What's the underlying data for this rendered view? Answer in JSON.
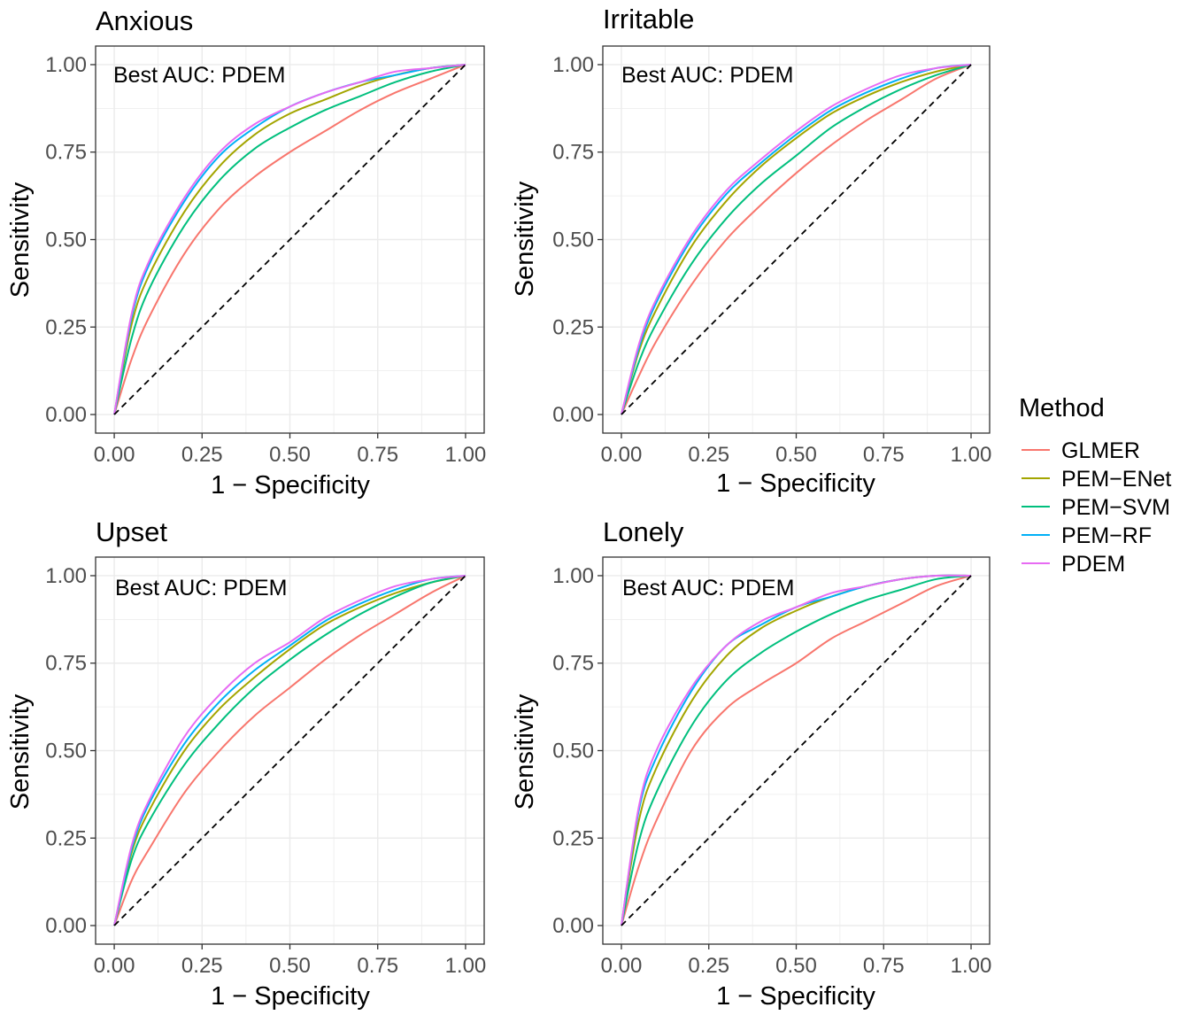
{
  "legend": {
    "title": "Method",
    "entries": [
      {
        "name": "GLMER",
        "color": "#F8766D"
      },
      {
        "name": "PEM−ENet",
        "color": "#A3A500"
      },
      {
        "name": "PEM−SVM",
        "color": "#00BF7D"
      },
      {
        "name": "PEM−RF",
        "color": "#00B0F6"
      },
      {
        "name": "PDEM",
        "color": "#E76BF3"
      }
    ]
  },
  "chart_data": [
    {
      "type": "line",
      "title": "Anxious",
      "annotation": "Best AUC: PDEM",
      "xlabel": "1 − Specificity",
      "ylabel": "Sensitivity",
      "xlim": [
        0,
        1
      ],
      "ylim": [
        0,
        1
      ],
      "xticks": [
        "0.00",
        "0.25",
        "0.50",
        "0.75",
        "1.00"
      ],
      "yticks": [
        "0.00",
        "0.25",
        "0.50",
        "0.75",
        "1.00"
      ],
      "reference_line": "diagonal",
      "x": [
        0,
        0.05,
        0.1,
        0.2,
        0.3,
        0.4,
        0.5,
        0.6,
        0.7,
        0.8,
        0.9,
        1
      ],
      "series": [
        {
          "name": "GLMER",
          "values": [
            0,
            0.16,
            0.28,
            0.46,
            0.59,
            0.68,
            0.75,
            0.81,
            0.87,
            0.92,
            0.96,
            1
          ]
        },
        {
          "name": "PEM−ENet",
          "values": [
            0,
            0.26,
            0.4,
            0.58,
            0.71,
            0.8,
            0.86,
            0.9,
            0.94,
            0.97,
            0.99,
            1
          ]
        },
        {
          "name": "PEM−SVM",
          "values": [
            0,
            0.22,
            0.36,
            0.54,
            0.67,
            0.76,
            0.82,
            0.87,
            0.91,
            0.95,
            0.98,
            1
          ]
        },
        {
          "name": "PEM−RF",
          "values": [
            0,
            0.28,
            0.43,
            0.61,
            0.74,
            0.82,
            0.88,
            0.92,
            0.95,
            0.97,
            0.99,
            1
          ]
        },
        {
          "name": "PDEM",
          "values": [
            0,
            0.29,
            0.44,
            0.62,
            0.75,
            0.83,
            0.88,
            0.92,
            0.95,
            0.98,
            0.99,
            1
          ]
        }
      ]
    },
    {
      "type": "line",
      "title": "Irritable",
      "annotation": "Best AUC: PDEM",
      "xlabel": "1 − Specificity",
      "ylabel": "Sensitivity",
      "xlim": [
        0,
        1
      ],
      "ylim": [
        0,
        1
      ],
      "xticks": [
        "0.00",
        "0.25",
        "0.50",
        "0.75",
        "1.00"
      ],
      "yticks": [
        "0.00",
        "0.25",
        "0.50",
        "0.75",
        "1.00"
      ],
      "reference_line": "diagonal",
      "x": [
        0,
        0.05,
        0.1,
        0.2,
        0.3,
        0.4,
        0.5,
        0.6,
        0.7,
        0.8,
        0.9,
        1
      ],
      "series": [
        {
          "name": "GLMER",
          "values": [
            0,
            0.11,
            0.21,
            0.37,
            0.5,
            0.6,
            0.69,
            0.77,
            0.84,
            0.9,
            0.96,
            1
          ]
        },
        {
          "name": "PEM−ENet",
          "values": [
            0,
            0.18,
            0.3,
            0.48,
            0.61,
            0.71,
            0.79,
            0.86,
            0.91,
            0.95,
            0.98,
            1
          ]
        },
        {
          "name": "PEM−SVM",
          "values": [
            0,
            0.15,
            0.26,
            0.43,
            0.56,
            0.66,
            0.74,
            0.82,
            0.88,
            0.93,
            0.97,
            1
          ]
        },
        {
          "name": "PEM−RF",
          "values": [
            0,
            0.19,
            0.32,
            0.5,
            0.63,
            0.72,
            0.8,
            0.87,
            0.92,
            0.96,
            0.99,
            1
          ]
        },
        {
          "name": "PDEM",
          "values": [
            0,
            0.2,
            0.33,
            0.51,
            0.64,
            0.73,
            0.81,
            0.88,
            0.93,
            0.97,
            0.99,
            1
          ]
        }
      ]
    },
    {
      "type": "line",
      "title": "Upset",
      "annotation": "Best AUC: PDEM",
      "xlabel": "1 − Specificity",
      "ylabel": "Sensitivity",
      "xlim": [
        0,
        1
      ],
      "ylim": [
        0,
        1
      ],
      "xticks": [
        "0.00",
        "0.25",
        "0.50",
        "0.75",
        "1.00"
      ],
      "yticks": [
        "0.00",
        "0.25",
        "0.50",
        "0.75",
        "1.00"
      ],
      "reference_line": "diagonal",
      "x": [
        0,
        0.05,
        0.1,
        0.2,
        0.3,
        0.4,
        0.5,
        0.6,
        0.7,
        0.8,
        0.9,
        1
      ],
      "series": [
        {
          "name": "GLMER",
          "values": [
            0,
            0.13,
            0.22,
            0.38,
            0.5,
            0.6,
            0.68,
            0.76,
            0.83,
            0.89,
            0.95,
            1
          ]
        },
        {
          "name": "PEM−ENet",
          "values": [
            0,
            0.21,
            0.33,
            0.5,
            0.62,
            0.71,
            0.79,
            0.86,
            0.91,
            0.95,
            0.98,
            1
          ]
        },
        {
          "name": "PEM−SVM",
          "values": [
            0,
            0.19,
            0.3,
            0.46,
            0.58,
            0.68,
            0.76,
            0.83,
            0.89,
            0.94,
            0.98,
            1
          ]
        },
        {
          "name": "PEM−RF",
          "values": [
            0,
            0.22,
            0.35,
            0.52,
            0.64,
            0.73,
            0.8,
            0.87,
            0.92,
            0.96,
            0.99,
            1
          ]
        },
        {
          "name": "PDEM",
          "values": [
            0,
            0.23,
            0.36,
            0.54,
            0.66,
            0.75,
            0.81,
            0.88,
            0.93,
            0.97,
            0.99,
            1
          ]
        }
      ]
    },
    {
      "type": "line",
      "title": "Lonely",
      "annotation": "Best AUC: PDEM",
      "xlabel": "1 − Specificity",
      "ylabel": "Sensitivity",
      "xlim": [
        0,
        1
      ],
      "ylim": [
        0,
        1
      ],
      "xticks": [
        "0.00",
        "0.25",
        "0.50",
        "0.75",
        "1.00"
      ],
      "yticks": [
        "0.00",
        "0.25",
        "0.50",
        "0.75",
        "1.00"
      ],
      "reference_line": "diagonal",
      "x": [
        0,
        0.05,
        0.1,
        0.2,
        0.3,
        0.4,
        0.5,
        0.6,
        0.7,
        0.8,
        0.9,
        1
      ],
      "series": [
        {
          "name": "GLMER",
          "values": [
            0,
            0.17,
            0.3,
            0.5,
            0.62,
            0.69,
            0.75,
            0.82,
            0.87,
            0.92,
            0.97,
            1
          ]
        },
        {
          "name": "PEM−ENet",
          "values": [
            0,
            0.3,
            0.45,
            0.64,
            0.77,
            0.85,
            0.9,
            0.94,
            0.97,
            0.99,
            1,
            1
          ]
        },
        {
          "name": "PEM−SVM",
          "values": [
            0,
            0.24,
            0.38,
            0.57,
            0.7,
            0.78,
            0.84,
            0.89,
            0.93,
            0.96,
            0.99,
            1
          ]
        },
        {
          "name": "PEM−RF",
          "values": [
            0,
            0.33,
            0.48,
            0.67,
            0.8,
            0.86,
            0.91,
            0.94,
            0.97,
            0.99,
            1,
            1
          ]
        },
        {
          "name": "PDEM",
          "values": [
            0,
            0.34,
            0.5,
            0.68,
            0.8,
            0.87,
            0.91,
            0.95,
            0.97,
            0.99,
            1,
            1
          ]
        }
      ]
    }
  ]
}
